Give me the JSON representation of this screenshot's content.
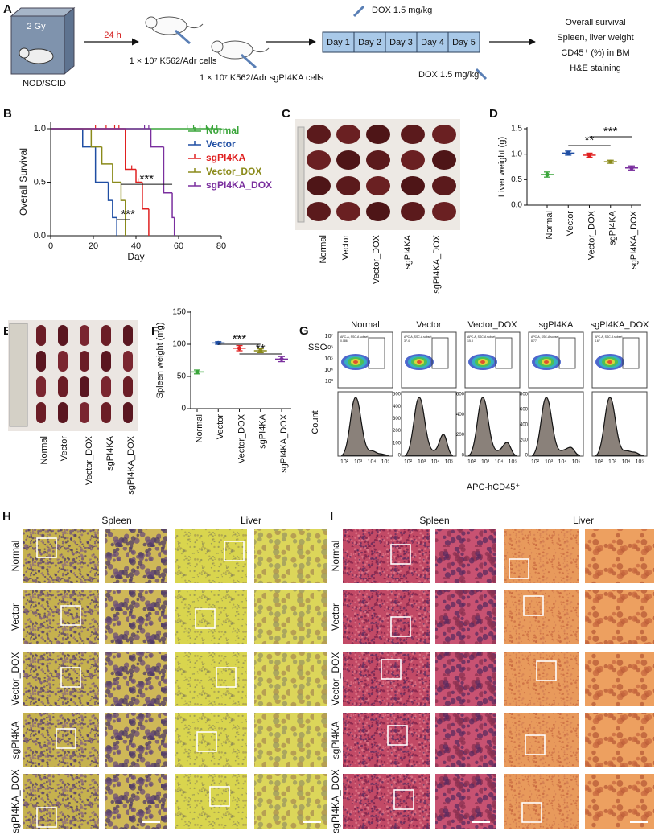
{
  "panel_labels": [
    "A",
    "B",
    "C",
    "D",
    "E",
    "F",
    "G",
    "H",
    "I"
  ],
  "schema": {
    "irradiation": "2 Gy",
    "mouse": "NOD/SCID",
    "interval": "24 h",
    "injection_1": "1 × 10⁷ K562/Adr cells",
    "injection_2": "1 × 10⁷ K562/Adr sgPI4KA cells",
    "dose_top": "DOX 1.5 mg/kg",
    "dose_bottom": "DOX 1.5 mg/kg",
    "days": [
      "Day 1",
      "Day 2",
      "Day 3",
      "Day 4",
      "Day 5"
    ],
    "outcomes": [
      "Overall survival",
      "Spleen, liver weight",
      "CD45⁺ (%) in BM",
      "H&E staining"
    ]
  },
  "chart_data": [
    {
      "type": "step",
      "y_label": "Overall Survival",
      "x_label": "Day",
      "xlim": [
        0,
        80
      ],
      "xticks": [
        0,
        20,
        40,
        60,
        80
      ],
      "ylim": [
        0,
        1
      ],
      "yticks": [
        {
          "value": 0,
          "label": "0.0"
        },
        0.5,
        {
          "value": 1,
          "label": "1.0"
        }
      ],
      "series": [
        {
          "name": "Normal",
          "color": "#3aa53a",
          "x": [
            0,
            80
          ],
          "values": [
            1,
            1
          ],
          "censored": [
            64,
            67,
            70,
            73,
            76,
            78
          ]
        },
        {
          "name": "Vector",
          "color": "#1f4ea3",
          "x": [
            0,
            15,
            21,
            27,
            29,
            31
          ],
          "values": [
            1,
            0.83,
            0.5,
            0.33,
            0.17,
            0
          ]
        },
        {
          "name": "sgPI4KA",
          "color": "#e02020",
          "x": [
            0,
            35,
            40,
            43,
            46
          ],
          "values": [
            1,
            0.62,
            0.5,
            0.25,
            0
          ],
          "censored": [
            21,
            26,
            30,
            32,
            38,
            41
          ]
        },
        {
          "name": "Vector_DOX",
          "color": "#8a8a1a",
          "x": [
            0,
            19,
            24,
            29,
            33,
            35
          ],
          "values": [
            1,
            0.83,
            0.67,
            0.5,
            0.33,
            0
          ]
        },
        {
          "name": "sgPI4KA_DOX",
          "color": "#7a2f9e",
          "x": [
            0,
            47,
            53,
            57,
            58
          ],
          "values": [
            1,
            0.83,
            0.4,
            0.17,
            0
          ],
          "censored": [
            44,
            46
          ]
        }
      ],
      "annotations": [
        {
          "label": "***",
          "groups": [
            "Vector_DOX",
            "sgPI4KA_DOX"
          ]
        },
        {
          "label": "***",
          "groups": [
            "Vector",
            "sgPI4KA"
          ]
        }
      ]
    },
    {
      "type": "dot",
      "y_label": "Liver weight (g)",
      "categories": [
        "Normal",
        "Vector",
        "Vector_DOX",
        "sgPI4KA",
        "sgPI4KA_DOX"
      ],
      "values": [
        0.6,
        1.02,
        0.98,
        0.85,
        0.73
      ],
      "errors": [
        0.05,
        0.04,
        0.04,
        0.03,
        0.04
      ],
      "colors": [
        "#3aa53a",
        "#1f4ea3",
        "#e02020",
        "#8a8a1a",
        "#7a2f9e"
      ],
      "ylim": [
        0,
        1.5
      ],
      "yticks": [
        {
          "value": 0,
          "label": "0.0"
        },
        0.5,
        {
          "value": 1,
          "label": "1.0"
        },
        1.5
      ],
      "annotations": [
        {
          "label": "**",
          "groups": [
            "Vector",
            "sgPI4KA"
          ]
        },
        {
          "label": "***",
          "groups": [
            "Vector_DOX",
            "sgPI4KA_DOX"
          ]
        }
      ]
    },
    {
      "type": "dot",
      "y_label": "Spleen weight (mg)",
      "categories": [
        "Normal",
        "Vector",
        "Vector_DOX",
        "sgPI4KA",
        "sgPI4KA_DOX"
      ],
      "values": [
        57,
        102,
        94,
        90,
        77
      ],
      "errors": [
        3,
        2,
        4,
        3,
        4
      ],
      "colors": [
        "#3aa53a",
        "#1f4ea3",
        "#e02020",
        "#8a8a1a",
        "#7a2f9e"
      ],
      "ylim": [
        0,
        150
      ],
      "yticks": [
        0,
        50,
        100,
        150
      ],
      "annotations": [
        {
          "label": "***",
          "groups": [
            "Vector",
            "sgPI4KA"
          ]
        },
        {
          "label": "**",
          "groups": [
            "Vector_DOX",
            "sgPI4KA_DOX"
          ]
        }
      ]
    }
  ],
  "liver_photo": {
    "labels": [
      "Normal",
      "Vector",
      "Vector_DOX",
      "sgPI4KA",
      "sgPI4KA_DOX"
    ]
  },
  "spleen_photo": {
    "labels": [
      "Normal",
      "Vector",
      "Vector_DOX",
      "sgPI4KA",
      "sgPI4KA_DOX"
    ]
  },
  "flow": {
    "y_label_top": "SSC",
    "y_label_bottom": "Count",
    "x_label": "APC-hCD45⁺",
    "ssc_ticks": [
      "10⁷",
      "10⁶",
      "10⁵",
      "10⁴",
      "10³"
    ],
    "x_ticks": [
      "10²",
      "10³",
      "10⁴",
      "10⁵"
    ],
    "gate_label": "APC-A, SSC-A subset",
    "columns": [
      {
        "title": "Normal",
        "gate": "0.086"
      },
      {
        "title": "Vector",
        "gate": "37.4",
        "count_ylim": [
          0,
          500
        ],
        "count_ticks": [
          0,
          100,
          200,
          300,
          400,
          500
        ]
      },
      {
        "title": "Vector_DOX",
        "gate": "15.3",
        "count_ylim": [
          0,
          600
        ],
        "count_ticks": [
          0,
          200,
          400,
          600
        ]
      },
      {
        "title": "sgPI4KA",
        "gate": "8.77",
        "count_ylim": [
          0,
          800
        ],
        "count_ticks": [
          0,
          200,
          400,
          600,
          800
        ]
      },
      {
        "title": "sgPI4KA_DOX",
        "gate": "4.67"
      }
    ]
  },
  "histology": [
    {
      "tissues": [
        "Spleen",
        "Liver"
      ],
      "groups": [
        "Normal",
        "Vector",
        "Vector_DOX",
        "sgPI4KA",
        "sgPI4KA_DOX"
      ]
    },
    {
      "tissues": [
        "Spleen",
        "Liver"
      ],
      "groups": [
        "Normal",
        "Vector",
        "Vector_DOX",
        "sgPI4KA",
        "sgPI4KA_DOX"
      ]
    }
  ]
}
